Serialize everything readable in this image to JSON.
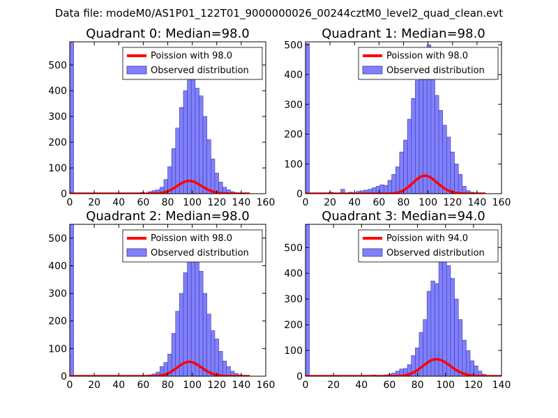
{
  "suptitle": "Data file: modeM0/AS1P01_122T01_9000000026_00244cztM0_level2_quad_clean.evt",
  "colors": {
    "bar_fill": "#8080ff",
    "bar_edge": "#3a3a9a",
    "poisson": "#ff0000"
  },
  "chart_data": [
    {
      "type": "bar",
      "title": "Quadrant 0: Median=98.0",
      "median": 98.0,
      "xlim": [
        0,
        160
      ],
      "ylim": [
        0,
        590
      ],
      "xticks": [
        "0",
        "20",
        "40",
        "60",
        "80",
        "100",
        "120",
        "140",
        "160"
      ],
      "yticks": [
        "0",
        "100",
        "200",
        "300",
        "400",
        "500"
      ],
      "ytick_values": [
        0,
        100,
        200,
        300,
        400,
        500
      ],
      "legend": {
        "line": "Poission with 98.0",
        "bar": "Observed distribution"
      },
      "bin_width": 3.2,
      "bins": [
        [
          0,
          590
        ],
        [
          57.6,
          5
        ],
        [
          60.8,
          3
        ],
        [
          64,
          8
        ],
        [
          67.2,
          12
        ],
        [
          70.4,
          15
        ],
        [
          73.6,
          25
        ],
        [
          76.8,
          55
        ],
        [
          80,
          105
        ],
        [
          83.2,
          175
        ],
        [
          86.4,
          255
        ],
        [
          89.6,
          335
        ],
        [
          92.8,
          400
        ],
        [
          96,
          450
        ],
        [
          99.2,
          490
        ],
        [
          102.4,
          410
        ],
        [
          105.6,
          380
        ],
        [
          108.8,
          300
        ],
        [
          112,
          210
        ],
        [
          115.2,
          135
        ],
        [
          118.4,
          80
        ],
        [
          121.6,
          45
        ],
        [
          124.8,
          25
        ],
        [
          128,
          15
        ],
        [
          131.2,
          8
        ],
        [
          134.4,
          4
        ],
        [
          137.6,
          2
        ],
        [
          140.8,
          1
        ]
      ]
    },
    {
      "type": "bar",
      "title": "Quadrant 1: Median=98.0",
      "median": 98.0,
      "xlim": [
        0,
        160
      ],
      "ylim": [
        0,
        510
      ],
      "xticks": [
        "0",
        "20",
        "40",
        "60",
        "80",
        "100",
        "120",
        "140",
        "160"
      ],
      "yticks": [
        "0",
        "100",
        "200",
        "300",
        "400",
        "500"
      ],
      "ytick_values": [
        0,
        100,
        200,
        300,
        400,
        500
      ],
      "legend": {
        "line": "Poission with 98.0",
        "bar": "Observed distribution"
      },
      "bin_width": 3.2,
      "bins": [
        [
          0,
          505
        ],
        [
          19.2,
          5
        ],
        [
          28.8,
          15
        ],
        [
          35.2,
          5
        ],
        [
          41.6,
          8
        ],
        [
          44.8,
          10
        ],
        [
          48,
          12
        ],
        [
          51.2,
          15
        ],
        [
          54.4,
          20
        ],
        [
          57.6,
          25
        ],
        [
          60.8,
          30
        ],
        [
          64,
          28
        ],
        [
          67.2,
          45
        ],
        [
          70.4,
          65
        ],
        [
          73.6,
          90
        ],
        [
          76.8,
          140
        ],
        [
          80,
          180
        ],
        [
          83.2,
          250
        ],
        [
          86.4,
          320
        ],
        [
          89.6,
          380
        ],
        [
          92.8,
          390
        ],
        [
          96,
          460
        ],
        [
          99.2,
          500
        ],
        [
          102.4,
          420
        ],
        [
          105.6,
          330
        ],
        [
          108.8,
          280
        ],
        [
          112,
          230
        ],
        [
          115.2,
          190
        ],
        [
          118.4,
          140
        ],
        [
          121.6,
          100
        ],
        [
          124.8,
          65
        ],
        [
          128,
          25
        ],
        [
          131.2,
          10
        ],
        [
          134.4,
          5
        ],
        [
          137.6,
          3
        ]
      ]
    },
    {
      "type": "bar",
      "title": "Quadrant 2: Median=98.0",
      "median": 98.0,
      "xlim": [
        0,
        160
      ],
      "ylim": [
        0,
        550
      ],
      "xticks": [
        "0",
        "20",
        "40",
        "60",
        "80",
        "100",
        "120",
        "140",
        "160"
      ],
      "yticks": [
        "0",
        "100",
        "200",
        "300",
        "400",
        "500"
      ],
      "ytick_values": [
        0,
        100,
        200,
        300,
        400,
        500
      ],
      "legend": {
        "line": "Poission with 98.0",
        "bar": "Observed distribution"
      },
      "bin_width": 3.2,
      "bins": [
        [
          0,
          550
        ],
        [
          64,
          5
        ],
        [
          67.2,
          8
        ],
        [
          70.4,
          15
        ],
        [
          73.6,
          35
        ],
        [
          76.8,
          50
        ],
        [
          80,
          80
        ],
        [
          83.2,
          155
        ],
        [
          86.4,
          235
        ],
        [
          89.6,
          300
        ],
        [
          92.8,
          375
        ],
        [
          96,
          440
        ],
        [
          99.2,
          520
        ],
        [
          102.4,
          500
        ],
        [
          105.6,
          380
        ],
        [
          108.8,
          300
        ],
        [
          112,
          225
        ],
        [
          115.2,
          165
        ],
        [
          118.4,
          135
        ],
        [
          121.6,
          90
        ],
        [
          124.8,
          55
        ],
        [
          128,
          35
        ],
        [
          131.2,
          18
        ],
        [
          134.4,
          10
        ],
        [
          137.6,
          5
        ],
        [
          140.8,
          3
        ]
      ]
    },
    {
      "type": "bar",
      "title": "Quadrant 3: Median=94.0",
      "median": 94.0,
      "xlim": [
        0,
        140
      ],
      "ylim": [
        0,
        590
      ],
      "xticks": [
        "0",
        "20",
        "40",
        "60",
        "80",
        "100",
        "120",
        "140"
      ],
      "yticks": [
        "0",
        "100",
        "200",
        "300",
        "400",
        "500"
      ],
      "ytick_values": [
        0,
        100,
        200,
        300,
        400,
        500
      ],
      "legend": {
        "line": "Poission with 94.0",
        "bar": "Observed distribution"
      },
      "bin_width": 2.8,
      "bins": [
        [
          0,
          590
        ],
        [
          47.6,
          5
        ],
        [
          56,
          5
        ],
        [
          58.8,
          8
        ],
        [
          61.6,
          12
        ],
        [
          64.4,
          20
        ],
        [
          67.2,
          28
        ],
        [
          70,
          30
        ],
        [
          72.8,
          45
        ],
        [
          75.6,
          80
        ],
        [
          78.4,
          110
        ],
        [
          81.2,
          170
        ],
        [
          84,
          220
        ],
        [
          86.8,
          330
        ],
        [
          89.6,
          370
        ],
        [
          92.4,
          360
        ],
        [
          95.2,
          520
        ],
        [
          98,
          480
        ],
        [
          100.8,
          430
        ],
        [
          103.6,
          380
        ],
        [
          106.4,
          300
        ],
        [
          109.2,
          220
        ],
        [
          112,
          140
        ],
        [
          114.8,
          100
        ],
        [
          117.6,
          60
        ],
        [
          120.4,
          40
        ],
        [
          123.2,
          20
        ],
        [
          126,
          8
        ],
        [
          128.8,
          3
        ]
      ]
    }
  ]
}
